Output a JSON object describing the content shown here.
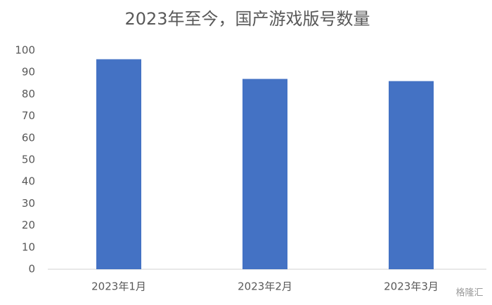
{
  "chart_data": {
    "type": "bar",
    "title": "2023年至今，国产游戏版号数量",
    "categories": [
      "2023年1月",
      "2023年2月",
      "2023年3月"
    ],
    "values": [
      96,
      87,
      86
    ],
    "color": "#4472c4",
    "ylim": [
      0,
      100
    ],
    "yticks": [
      0,
      10,
      20,
      30,
      40,
      50,
      60,
      70,
      80,
      90,
      100
    ],
    "grid": false,
    "watermark": "格隆汇"
  }
}
